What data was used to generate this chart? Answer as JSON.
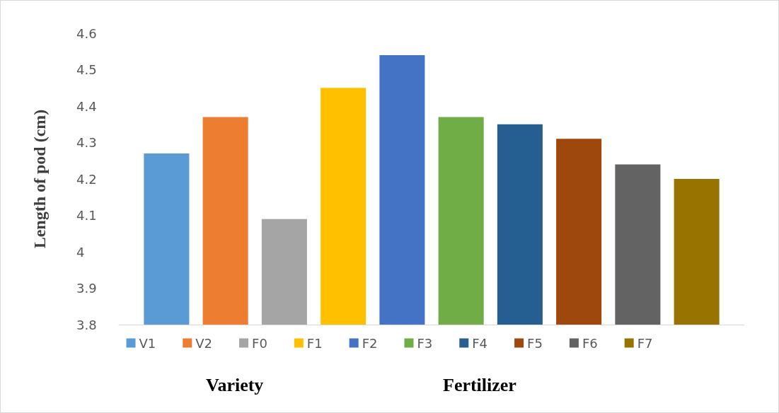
{
  "chart_data": {
    "type": "bar",
    "ylabel": "Length of pod (cm)",
    "categories": [
      null
    ],
    "series": [
      {
        "name": "V1",
        "color": "#5b9bd5",
        "values": [
          4.27
        ]
      },
      {
        "name": "V2",
        "color": "#ed7d31",
        "values": [
          4.37
        ]
      },
      {
        "name": "F0",
        "color": "#a5a5a5",
        "values": [
          4.09
        ]
      },
      {
        "name": "F1",
        "color": "#ffc000",
        "values": [
          4.45
        ]
      },
      {
        "name": "F2",
        "color": "#4472c4",
        "values": [
          4.54
        ]
      },
      {
        "name": "F3",
        "color": "#70ad47",
        "values": [
          4.37
        ]
      },
      {
        "name": "F4",
        "color": "#255e91",
        "values": [
          4.35
        ]
      },
      {
        "name": "F5",
        "color": "#9e480e",
        "values": [
          4.31
        ]
      },
      {
        "name": "F6",
        "color": "#636363",
        "values": [
          4.24
        ]
      },
      {
        "name": "F7",
        "color": "#997300",
        "values": [
          4.2
        ]
      }
    ],
    "ylim": [
      3.8,
      4.6
    ],
    "yticks": [
      3.8,
      3.9,
      4,
      4.1,
      4.2,
      4.3,
      4.4,
      4.5,
      4.6
    ],
    "grid": false,
    "legend": "bottom",
    "annotations": [
      "Variety",
      "Fertilizer"
    ]
  }
}
